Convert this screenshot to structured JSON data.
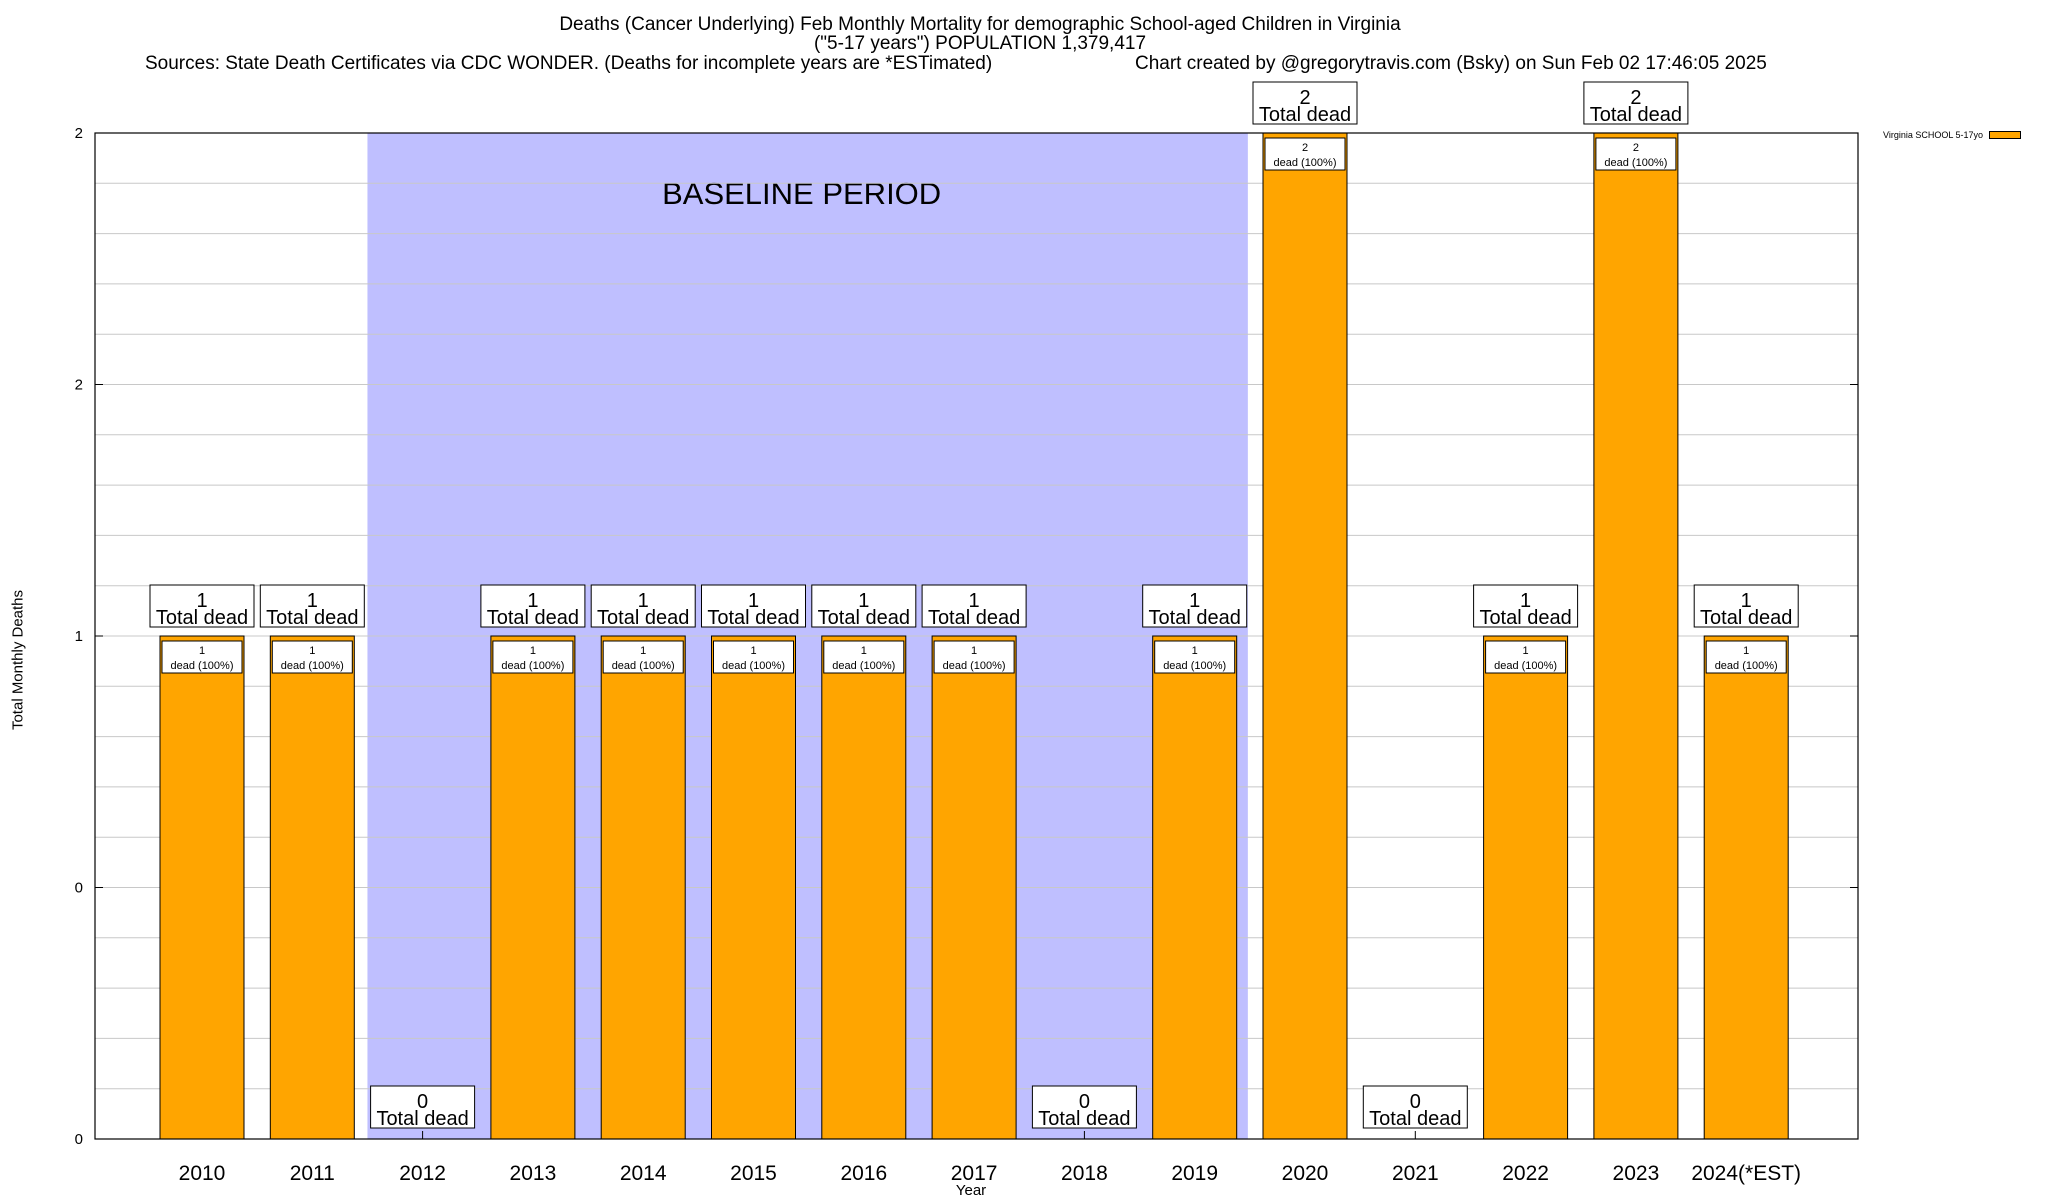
{
  "chart_data": {
    "type": "bar",
    "title": "Deaths (Cancer Underlying) Feb Monthly Mortality for demographic School-aged Children in Virginia",
    "subtitle": "(\"5-17 years\") POPULATION 1,379,417",
    "sources": "Sources: State Death Certificates via CDC WONDER. (Deaths for incomplete years are *ESTimated)",
    "credit": "Chart created by @gregorytravis.com (Bsky) on Sun Feb 02 17:46:05 2025",
    "xlabel": "Year",
    "ylabel": "Total Monthly Deaths",
    "categories": [
      "2010",
      "2011",
      "2012",
      "2013",
      "2014",
      "2015",
      "2016",
      "2017",
      "2018",
      "2019",
      "2020",
      "2021",
      "2022",
      "2023",
      "2024(*EST)"
    ],
    "series": [
      {
        "name": "Virginia SCHOOL 5-17yo",
        "color": "#FFA500",
        "values": [
          1,
          1,
          0,
          1,
          1,
          1,
          1,
          1,
          0,
          1,
          2,
          0,
          1,
          2,
          1
        ]
      }
    ],
    "ylim": [
      0,
      2
    ],
    "yticks": [
      {
        "value": 0,
        "label": "0"
      },
      {
        "value": 0.5,
        "label": "0"
      },
      {
        "value": 1,
        "label": "1"
      },
      {
        "value": 1.5,
        "label": "2"
      },
      {
        "value": 2,
        "label": "2"
      }
    ],
    "total_label": "Total dead",
    "segment_label_suffix": "dead (100%)",
    "baseline": {
      "label": "BASELINE PERIOD",
      "from": "2012",
      "to": "2019",
      "color": "#BFBFFF"
    },
    "grid": true,
    "legend_position": "top-right"
  }
}
